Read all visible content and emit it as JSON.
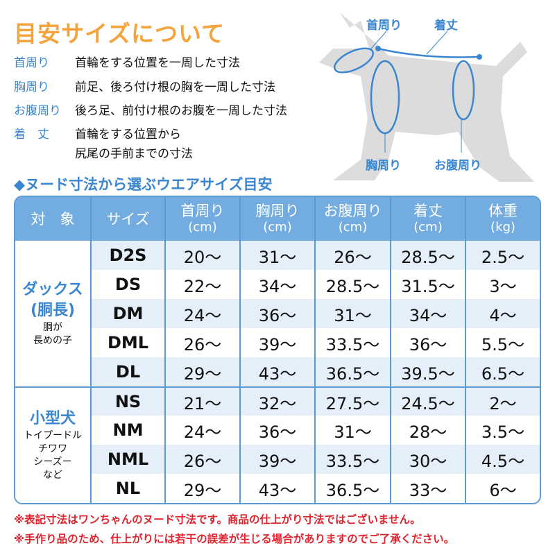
{
  "title": "目安サイズについて",
  "definitions": [
    {
      "term": "首周り",
      "desc": "首輪をする位置を一周した寸法"
    },
    {
      "term": "胸周り",
      "desc": "前足、後ろ付け根の胸を一周した寸法"
    },
    {
      "term": "お腹周り",
      "desc": "後ろ足、前付け根のお腹を一周した寸法"
    },
    {
      "term": "着　丈",
      "desc": "首輪をする位置から",
      "desc2": "尻尾の手前までの寸法"
    }
  ],
  "diagram": {
    "neck": "首周り",
    "length": "着丈",
    "chest": "胸周り",
    "belly": "お腹周り"
  },
  "subtitle": "◆ヌード寸法から選ぶウエアサイズ目安",
  "table": {
    "headers": [
      {
        "label": "対　象"
      },
      {
        "label": "サイズ"
      },
      {
        "label": "首周り",
        "unit": "(cm)"
      },
      {
        "label": "胸周り",
        "unit": "(cm)"
      },
      {
        "label": "お腹周り",
        "unit": "(cm)"
      },
      {
        "label": "着丈",
        "unit": "(cm)"
      },
      {
        "label": "体重",
        "unit": "(kg)"
      }
    ],
    "groups": [
      {
        "name": "ダックス",
        "name2": "(胴長)",
        "desc": [
          "胴が",
          "長めの子"
        ],
        "rows": [
          [
            "D2S",
            "20～",
            "31～",
            "26～",
            "28.5～",
            "2.5～"
          ],
          [
            "DS",
            "22～",
            "34～",
            "28.5～",
            "31.5～",
            "3～"
          ],
          [
            "DM",
            "24～",
            "36～",
            "31～",
            "34～",
            "4～"
          ],
          [
            "DML",
            "26～",
            "39～",
            "33.5～",
            "36～",
            "5.5～"
          ],
          [
            "DL",
            "29～",
            "43～",
            "36.5～",
            "39.5～",
            "6.5～"
          ]
        ]
      },
      {
        "name": "小型犬",
        "desc": [
          "トイプードル",
          "チワワ",
          "シーズー",
          "など"
        ],
        "rows": [
          [
            "NS",
            "21～",
            "32～",
            "27.5～",
            "24.5～",
            "2～"
          ],
          [
            "NM",
            "24～",
            "36～",
            "31～",
            "28～",
            "3.5～"
          ],
          [
            "NML",
            "26～",
            "39～",
            "33.5～",
            "30～",
            "4.5～"
          ],
          [
            "NL",
            "29～",
            "43～",
            "36.5～",
            "33～",
            "6～"
          ]
        ]
      }
    ]
  },
  "notes": [
    "※表記寸法はワンちゃんのヌード寸法です。商品の仕上がり寸法ではございません。",
    "※手作り品のため、仕上がりには若干の誤差が生じる場合がありますのでご了承ください。"
  ],
  "colors": {
    "title": "#f5a33c",
    "accent": "#3a86d0",
    "header": "#73ace0",
    "stripe": "#e4eff9",
    "note": "#e0242e"
  }
}
